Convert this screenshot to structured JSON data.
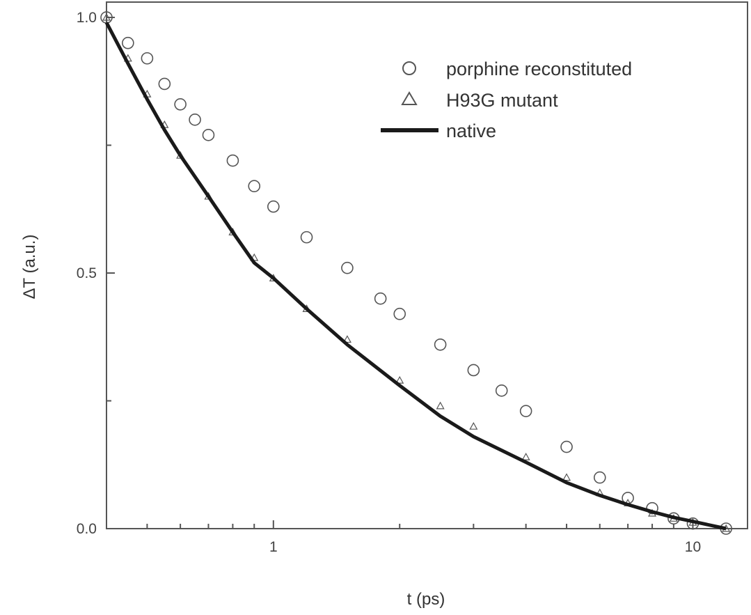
{
  "chart_data": {
    "type": "scatter",
    "xlabel": "t (ps)",
    "ylabel": "ΔT (a.u.)",
    "xscale": "log",
    "xlim": [
      0.4,
      13.5
    ],
    "ylim": [
      0.0,
      1.03
    ],
    "x_ticks": [
      {
        "value": 1,
        "label": "1"
      },
      {
        "value": 10,
        "label": "10"
      }
    ],
    "y_ticks": [
      {
        "value": 0.0,
        "label": "0.0"
      },
      {
        "value": 0.5,
        "label": "0.5"
      },
      {
        "value": 1.0,
        "label": "1.0"
      }
    ],
    "legend_position": "top-right",
    "series": [
      {
        "name": "porphine reconstituted",
        "marker": "circle",
        "color": "#555555",
        "points": [
          [
            0.4,
            1.0
          ],
          [
            0.45,
            0.95
          ],
          [
            0.5,
            0.92
          ],
          [
            0.55,
            0.87
          ],
          [
            0.6,
            0.83
          ],
          [
            0.65,
            0.8
          ],
          [
            0.7,
            0.77
          ],
          [
            0.8,
            0.72
          ],
          [
            0.9,
            0.67
          ],
          [
            1.0,
            0.63
          ],
          [
            1.2,
            0.57
          ],
          [
            1.5,
            0.51
          ],
          [
            1.8,
            0.45
          ],
          [
            2.0,
            0.42
          ],
          [
            2.5,
            0.36
          ],
          [
            3.0,
            0.31
          ],
          [
            3.5,
            0.27
          ],
          [
            4.0,
            0.23
          ],
          [
            5.0,
            0.16
          ],
          [
            6.0,
            0.1
          ],
          [
            7.0,
            0.06
          ],
          [
            8.0,
            0.04
          ],
          [
            9.0,
            0.02
          ],
          [
            10.0,
            0.01
          ],
          [
            12.0,
            0.0
          ]
        ]
      },
      {
        "name": "H93G mutant",
        "marker": "triangle",
        "color": "#555555",
        "points": [
          [
            0.4,
            1.0
          ],
          [
            0.45,
            0.92
          ],
          [
            0.5,
            0.85
          ],
          [
            0.55,
            0.79
          ],
          [
            0.6,
            0.73
          ],
          [
            0.7,
            0.65
          ],
          [
            0.8,
            0.58
          ],
          [
            0.9,
            0.53
          ],
          [
            1.0,
            0.49
          ],
          [
            1.2,
            0.43
          ],
          [
            1.5,
            0.37
          ],
          [
            2.0,
            0.29
          ],
          [
            2.5,
            0.24
          ],
          [
            3.0,
            0.2
          ],
          [
            4.0,
            0.14
          ],
          [
            5.0,
            0.1
          ],
          [
            6.0,
            0.07
          ],
          [
            7.0,
            0.05
          ],
          [
            8.0,
            0.03
          ],
          [
            9.0,
            0.02
          ],
          [
            10.0,
            0.012
          ],
          [
            12.0,
            0.0
          ]
        ]
      },
      {
        "name": "native",
        "marker": "line",
        "color": "#1a1a1a",
        "points": [
          [
            0.4,
            0.99
          ],
          [
            0.45,
            0.91
          ],
          [
            0.5,
            0.84
          ],
          [
            0.55,
            0.78
          ],
          [
            0.6,
            0.73
          ],
          [
            0.7,
            0.65
          ],
          [
            0.8,
            0.58
          ],
          [
            0.9,
            0.52
          ],
          [
            1.0,
            0.49
          ],
          [
            1.2,
            0.43
          ],
          [
            1.5,
            0.36
          ],
          [
            2.0,
            0.28
          ],
          [
            2.5,
            0.22
          ],
          [
            3.0,
            0.18
          ],
          [
            4.0,
            0.13
          ],
          [
            5.0,
            0.09
          ],
          [
            6.0,
            0.065
          ],
          [
            7.0,
            0.047
          ],
          [
            8.0,
            0.033
          ],
          [
            9.0,
            0.022
          ],
          [
            10.0,
            0.014
          ],
          [
            12.0,
            0.0
          ]
        ]
      }
    ]
  }
}
